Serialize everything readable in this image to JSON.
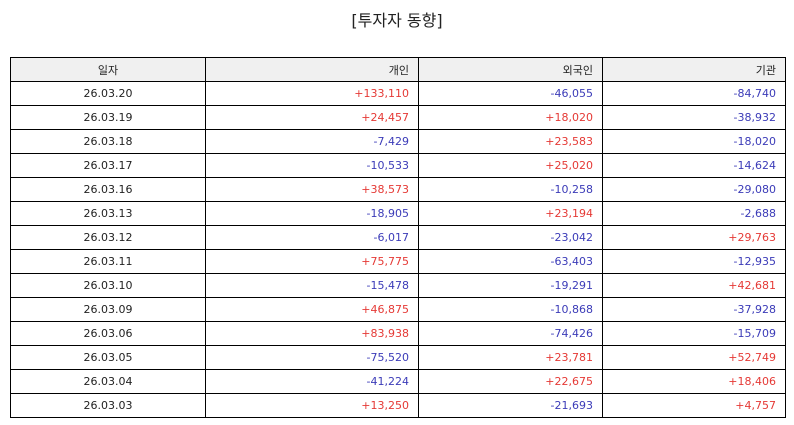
{
  "title": "[투자자 동향]",
  "table": {
    "headers": [
      "일자",
      "개인",
      "외국인",
      "기관"
    ],
    "rows": [
      [
        "26.03.20",
        "+133,110",
        "-46,055",
        "-84,740"
      ],
      [
        "26.03.19",
        "+24,457",
        "+18,020",
        "-38,932"
      ],
      [
        "26.03.18",
        "-7,429",
        "+23,583",
        "-18,020"
      ],
      [
        "26.03.17",
        "-10,533",
        "+25,020",
        "-14,624"
      ],
      [
        "26.03.16",
        "+38,573",
        "-10,258",
        "-29,080"
      ],
      [
        "26.03.13",
        "-18,905",
        "+23,194",
        "-2,688"
      ],
      [
        "26.03.12",
        "-6,017",
        "-23,042",
        "+29,763"
      ],
      [
        "26.03.11",
        "+75,775",
        "-63,403",
        "-12,935"
      ],
      [
        "26.03.10",
        "-15,478",
        "-19,291",
        "+42,681"
      ],
      [
        "26.03.09",
        "+46,875",
        "-10,868",
        "-37,928"
      ],
      [
        "26.03.06",
        "+83,938",
        "-74,426",
        "-15,709"
      ],
      [
        "26.03.05",
        "-75,520",
        "+23,781",
        "+52,749"
      ],
      [
        "26.03.04",
        "-41,224",
        "+22,675",
        "+18,406"
      ],
      [
        "26.03.03",
        "+13,250",
        "-21,693",
        "+4,757"
      ]
    ]
  },
  "colors": {
    "positive": "#e53935",
    "negative": "#3b3bb8",
    "header_bg": "#f0f0f0"
  }
}
